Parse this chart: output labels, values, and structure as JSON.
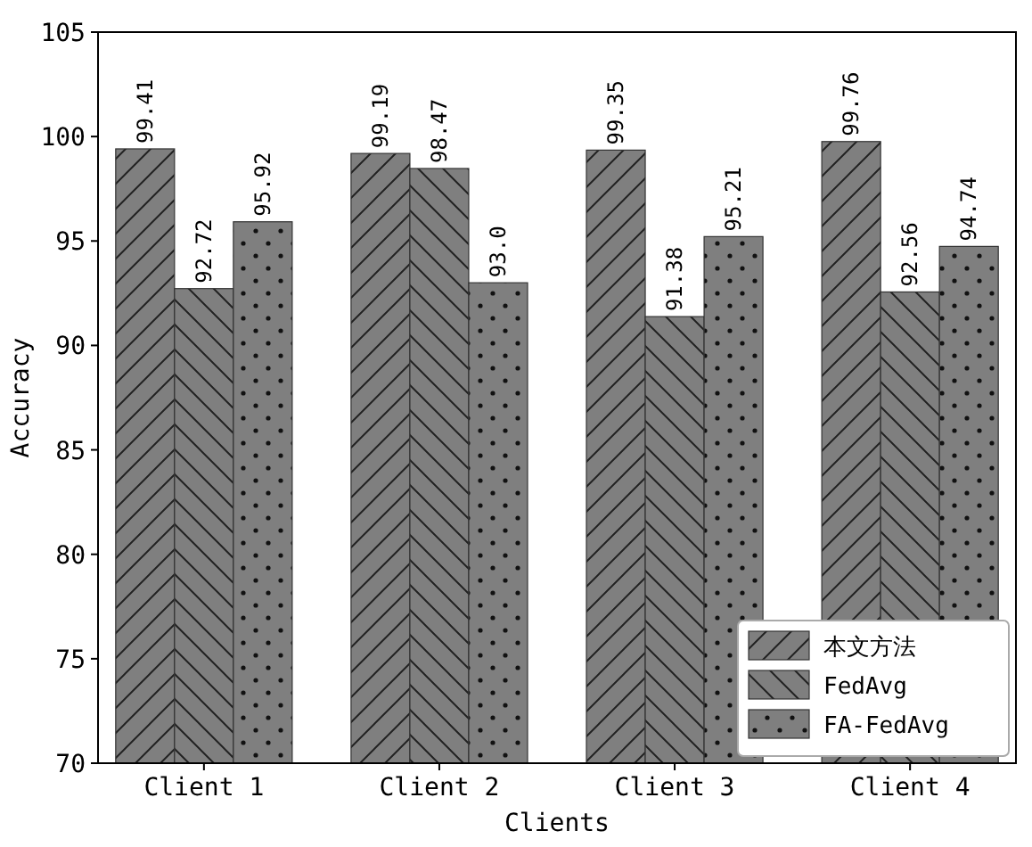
{
  "chart_data": {
    "type": "bar",
    "xlabel": "Clients",
    "ylabel": "Accuracy",
    "categories": [
      "Client 1",
      "Client 2",
      "Client 3",
      "Client 4"
    ],
    "series": [
      {
        "name": "本文方法",
        "color": "#7f7f7f",
        "values": [
          99.41,
          99.19,
          99.35,
          99.76
        ]
      },
      {
        "name": "FedAvg",
        "color": "#7f7f7f",
        "values": [
          92.72,
          98.47,
          91.38,
          92.56
        ]
      },
      {
        "name": "FA-FedAvg",
        "color": "#7f7f7f",
        "values": [
          95.92,
          93.0,
          95.21,
          94.74
        ]
      }
    ],
    "value_labels": [
      [
        "99.41",
        "99.19",
        "99.35",
        "99.76"
      ],
      [
        "92.72",
        "98.47",
        "91.38",
        "92.56"
      ],
      [
        "95.92",
        "93.0",
        "95.21",
        "94.74"
      ]
    ],
    "ylim": [
      70,
      105
    ],
    "yticks": [
      70,
      75,
      80,
      85,
      90,
      95,
      100,
      105
    ],
    "grid": false,
    "legend": "bottom right"
  }
}
